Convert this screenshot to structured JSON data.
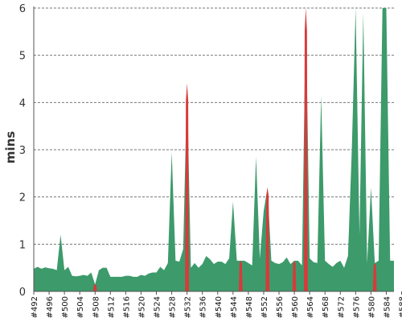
{
  "chart_data": {
    "type": "area",
    "ylabel": "mins",
    "xlabel": "",
    "title": "",
    "ylim": [
      0,
      6
    ],
    "y_ticks": [
      0,
      1,
      2,
      3,
      4,
      5,
      6
    ],
    "grid": true,
    "x_ticks": [
      "#492",
      "#496",
      "#500",
      "#504",
      "#508",
      "#512",
      "#516",
      "#520",
      "#524",
      "#528",
      "#532",
      "#536",
      "#540",
      "#544",
      "#548",
      "#552",
      "#556",
      "#560",
      "#564",
      "#568",
      "#572",
      "#576",
      "#580",
      "#584",
      "#588"
    ],
    "x_start": 492,
    "colors": {
      "ok": "#3d9a6b",
      "fail": "#d83a3a",
      "grid": "#777777"
    },
    "series": [
      {
        "values": [
          0.48,
          0.52,
          0.48,
          0.51,
          0.49,
          0.48,
          0.45,
          1.2,
          0.45,
          0.52,
          0.33,
          0.32,
          0.33,
          0.35,
          0.33,
          0.4,
          0.15,
          0.45,
          0.5,
          0.5,
          0.31,
          0.31,
          0.31,
          0.31,
          0.33,
          0.33,
          0.31,
          0.31,
          0.35,
          0.33,
          0.38,
          0.4,
          0.4,
          0.52,
          0.45,
          0.6,
          2.95,
          0.65,
          0.63,
          0.9,
          4.4,
          0.5,
          0.6,
          0.5,
          0.58,
          0.75,
          0.68,
          0.58,
          0.63,
          0.63,
          0.58,
          0.7,
          1.9,
          0.65,
          0.65,
          0.65,
          0.6,
          0.55,
          2.85,
          0.7,
          1.7,
          2.2,
          0.65,
          0.6,
          0.58,
          0.62,
          0.72,
          0.58,
          0.65,
          0.65,
          0.55,
          6.1,
          0.7,
          0.62,
          0.6,
          4.15,
          0.65,
          0.58,
          0.52,
          0.6,
          0.65,
          0.5,
          0.75,
          3.0,
          6.8,
          1.2,
          5.9,
          0.6,
          2.2,
          0.6,
          0.65,
          6.8,
          6.1,
          0.65,
          0.65
        ],
        "failed": [
          16,
          40,
          54,
          61,
          68,
          71,
          89
        ]
      }
    ]
  }
}
